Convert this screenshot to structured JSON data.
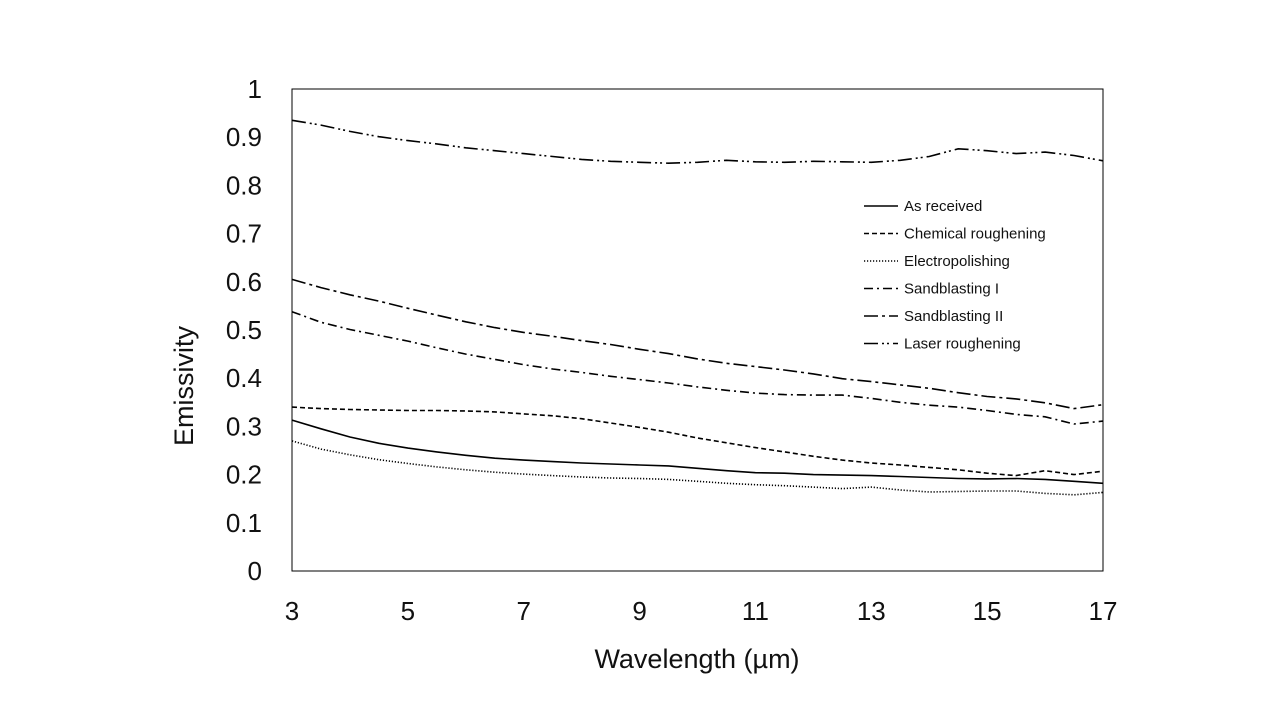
{
  "chart_data": {
    "type": "line",
    "title": "",
    "xlabel": "Wavelength (µm)",
    "ylabel": "Emissivity",
    "xlim": [
      3,
      17
    ],
    "ylim": [
      0,
      1
    ],
    "xticks": [
      3,
      5,
      7,
      9,
      11,
      13,
      15,
      17
    ],
    "yticks": [
      0,
      0.1,
      0.2,
      0.3,
      0.4,
      0.5,
      0.6,
      0.7,
      0.8,
      0.9,
      1
    ],
    "ytick_labels": [
      "0",
      "0.1",
      "0.2",
      "0.3",
      "0.4",
      "0.5",
      "0.6",
      "0.7",
      "0.8",
      "0.9",
      "1"
    ],
    "grid": false,
    "legend_position": "right",
    "series": [
      {
        "name": "As received",
        "style": "solid",
        "x": [
          3,
          3.5,
          4,
          4.5,
          5,
          5.5,
          6,
          6.5,
          7,
          7.5,
          8,
          8.5,
          9,
          9.5,
          10,
          10.5,
          11,
          11.5,
          12,
          12.5,
          13,
          13.5,
          14,
          14.5,
          15,
          15.5,
          16,
          16.5,
          17
        ],
        "values": [
          0.313,
          0.295,
          0.278,
          0.265,
          0.255,
          0.247,
          0.24,
          0.234,
          0.23,
          0.227,
          0.224,
          0.222,
          0.22,
          0.218,
          0.213,
          0.208,
          0.204,
          0.203,
          0.2,
          0.199,
          0.198,
          0.196,
          0.194,
          0.192,
          0.191,
          0.192,
          0.19,
          0.186,
          0.182
        ]
      },
      {
        "name": "Chemical roughening",
        "style": "dashed",
        "x": [
          3,
          3.5,
          4,
          4.5,
          5,
          5.5,
          6,
          6.5,
          7,
          7.5,
          8,
          8.5,
          9,
          9.5,
          10,
          10.5,
          11,
          11.5,
          12,
          12.5,
          13,
          13.5,
          14,
          14.5,
          15,
          15.5,
          16,
          16.5,
          17
        ],
        "values": [
          0.34,
          0.337,
          0.335,
          0.334,
          0.333,
          0.333,
          0.332,
          0.33,
          0.326,
          0.322,
          0.316,
          0.307,
          0.298,
          0.288,
          0.276,
          0.266,
          0.256,
          0.247,
          0.238,
          0.23,
          0.224,
          0.22,
          0.215,
          0.21,
          0.203,
          0.198,
          0.208,
          0.2,
          0.207
        ]
      },
      {
        "name": "Electropolishing",
        "style": "dotted",
        "x": [
          3,
          3.5,
          4,
          4.5,
          5,
          5.5,
          6,
          6.5,
          7,
          7.5,
          8,
          8.5,
          9,
          9.5,
          10,
          10.5,
          11,
          11.5,
          12,
          12.5,
          13,
          13.5,
          14,
          14.5,
          15,
          15.5,
          16,
          16.5,
          17
        ],
        "values": [
          0.27,
          0.253,
          0.241,
          0.231,
          0.223,
          0.216,
          0.21,
          0.205,
          0.201,
          0.198,
          0.195,
          0.193,
          0.192,
          0.19,
          0.186,
          0.182,
          0.179,
          0.177,
          0.174,
          0.171,
          0.174,
          0.168,
          0.164,
          0.165,
          0.166,
          0.166,
          0.161,
          0.158,
          0.163
        ]
      },
      {
        "name": "Sandblasting I",
        "style": "dash-dot",
        "x": [
          3,
          3.5,
          4,
          4.5,
          5,
          5.5,
          6,
          6.5,
          7,
          7.5,
          8,
          8.5,
          9,
          9.5,
          10,
          10.5,
          11,
          11.5,
          12,
          12.5,
          13,
          13.5,
          14,
          14.5,
          15,
          15.5,
          16,
          16.5,
          17
        ],
        "values": [
          0.538,
          0.516,
          0.501,
          0.489,
          0.477,
          0.463,
          0.45,
          0.439,
          0.428,
          0.419,
          0.412,
          0.404,
          0.397,
          0.39,
          0.382,
          0.375,
          0.369,
          0.366,
          0.365,
          0.365,
          0.358,
          0.35,
          0.344,
          0.34,
          0.333,
          0.325,
          0.32,
          0.305,
          0.311
        ]
      },
      {
        "name": "Sandblasting II",
        "style": "long-dash-dot",
        "x": [
          3,
          3.5,
          4,
          4.5,
          5,
          5.5,
          6,
          6.5,
          7,
          7.5,
          8,
          8.5,
          9,
          9.5,
          10,
          10.5,
          11,
          11.5,
          12,
          12.5,
          13,
          13.5,
          14,
          14.5,
          15,
          15.5,
          16,
          16.5,
          17
        ],
        "values": [
          0.605,
          0.588,
          0.573,
          0.56,
          0.545,
          0.531,
          0.517,
          0.505,
          0.495,
          0.487,
          0.478,
          0.47,
          0.46,
          0.451,
          0.44,
          0.431,
          0.424,
          0.417,
          0.409,
          0.399,
          0.393,
          0.386,
          0.379,
          0.37,
          0.362,
          0.357,
          0.349,
          0.337,
          0.345
        ]
      },
      {
        "name": "Laser roughening",
        "style": "long-dash-dot-dot",
        "x": [
          3,
          3.5,
          4,
          4.5,
          5,
          5.5,
          6,
          6.5,
          7,
          7.5,
          8,
          8.5,
          9,
          9.5,
          10,
          10.5,
          11,
          11.5,
          12,
          12.5,
          13,
          13.5,
          14,
          14.5,
          15,
          15.5,
          16,
          16.5,
          17
        ],
        "values": [
          0.935,
          0.925,
          0.912,
          0.901,
          0.893,
          0.886,
          0.878,
          0.872,
          0.866,
          0.86,
          0.854,
          0.85,
          0.848,
          0.846,
          0.848,
          0.852,
          0.849,
          0.848,
          0.85,
          0.849,
          0.848,
          0.852,
          0.86,
          0.876,
          0.872,
          0.866,
          0.869,
          0.862,
          0.851
        ]
      }
    ]
  }
}
